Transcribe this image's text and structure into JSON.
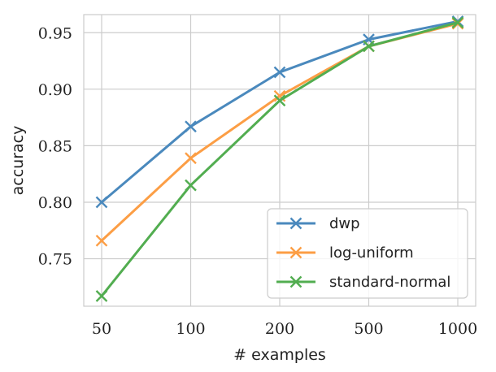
{
  "chart_data": {
    "type": "line",
    "xlabel": "# examples",
    "ylabel": "accuracy",
    "categories": [
      "50",
      "100",
      "200",
      "500",
      "1000"
    ],
    "ylim": [
      0.708,
      0.966
    ],
    "yticks": [
      "0.75",
      "0.80",
      "0.85",
      "0.90",
      "0.95"
    ],
    "grid": true,
    "legend_position": "lower-right",
    "series": [
      {
        "name": "dwp",
        "color": "#4a89bd",
        "marker": "x",
        "values": [
          0.8,
          0.867,
          0.915,
          0.944,
          0.96
        ]
      },
      {
        "name": "log-uniform",
        "color": "#fc9e45",
        "marker": "x",
        "values": [
          0.766,
          0.839,
          0.894,
          0.938,
          0.958
        ]
      },
      {
        "name": "standard-normal",
        "color": "#52ad50",
        "marker": "x",
        "values": [
          0.717,
          0.815,
          0.89,
          0.938,
          0.959
        ]
      }
    ]
  }
}
